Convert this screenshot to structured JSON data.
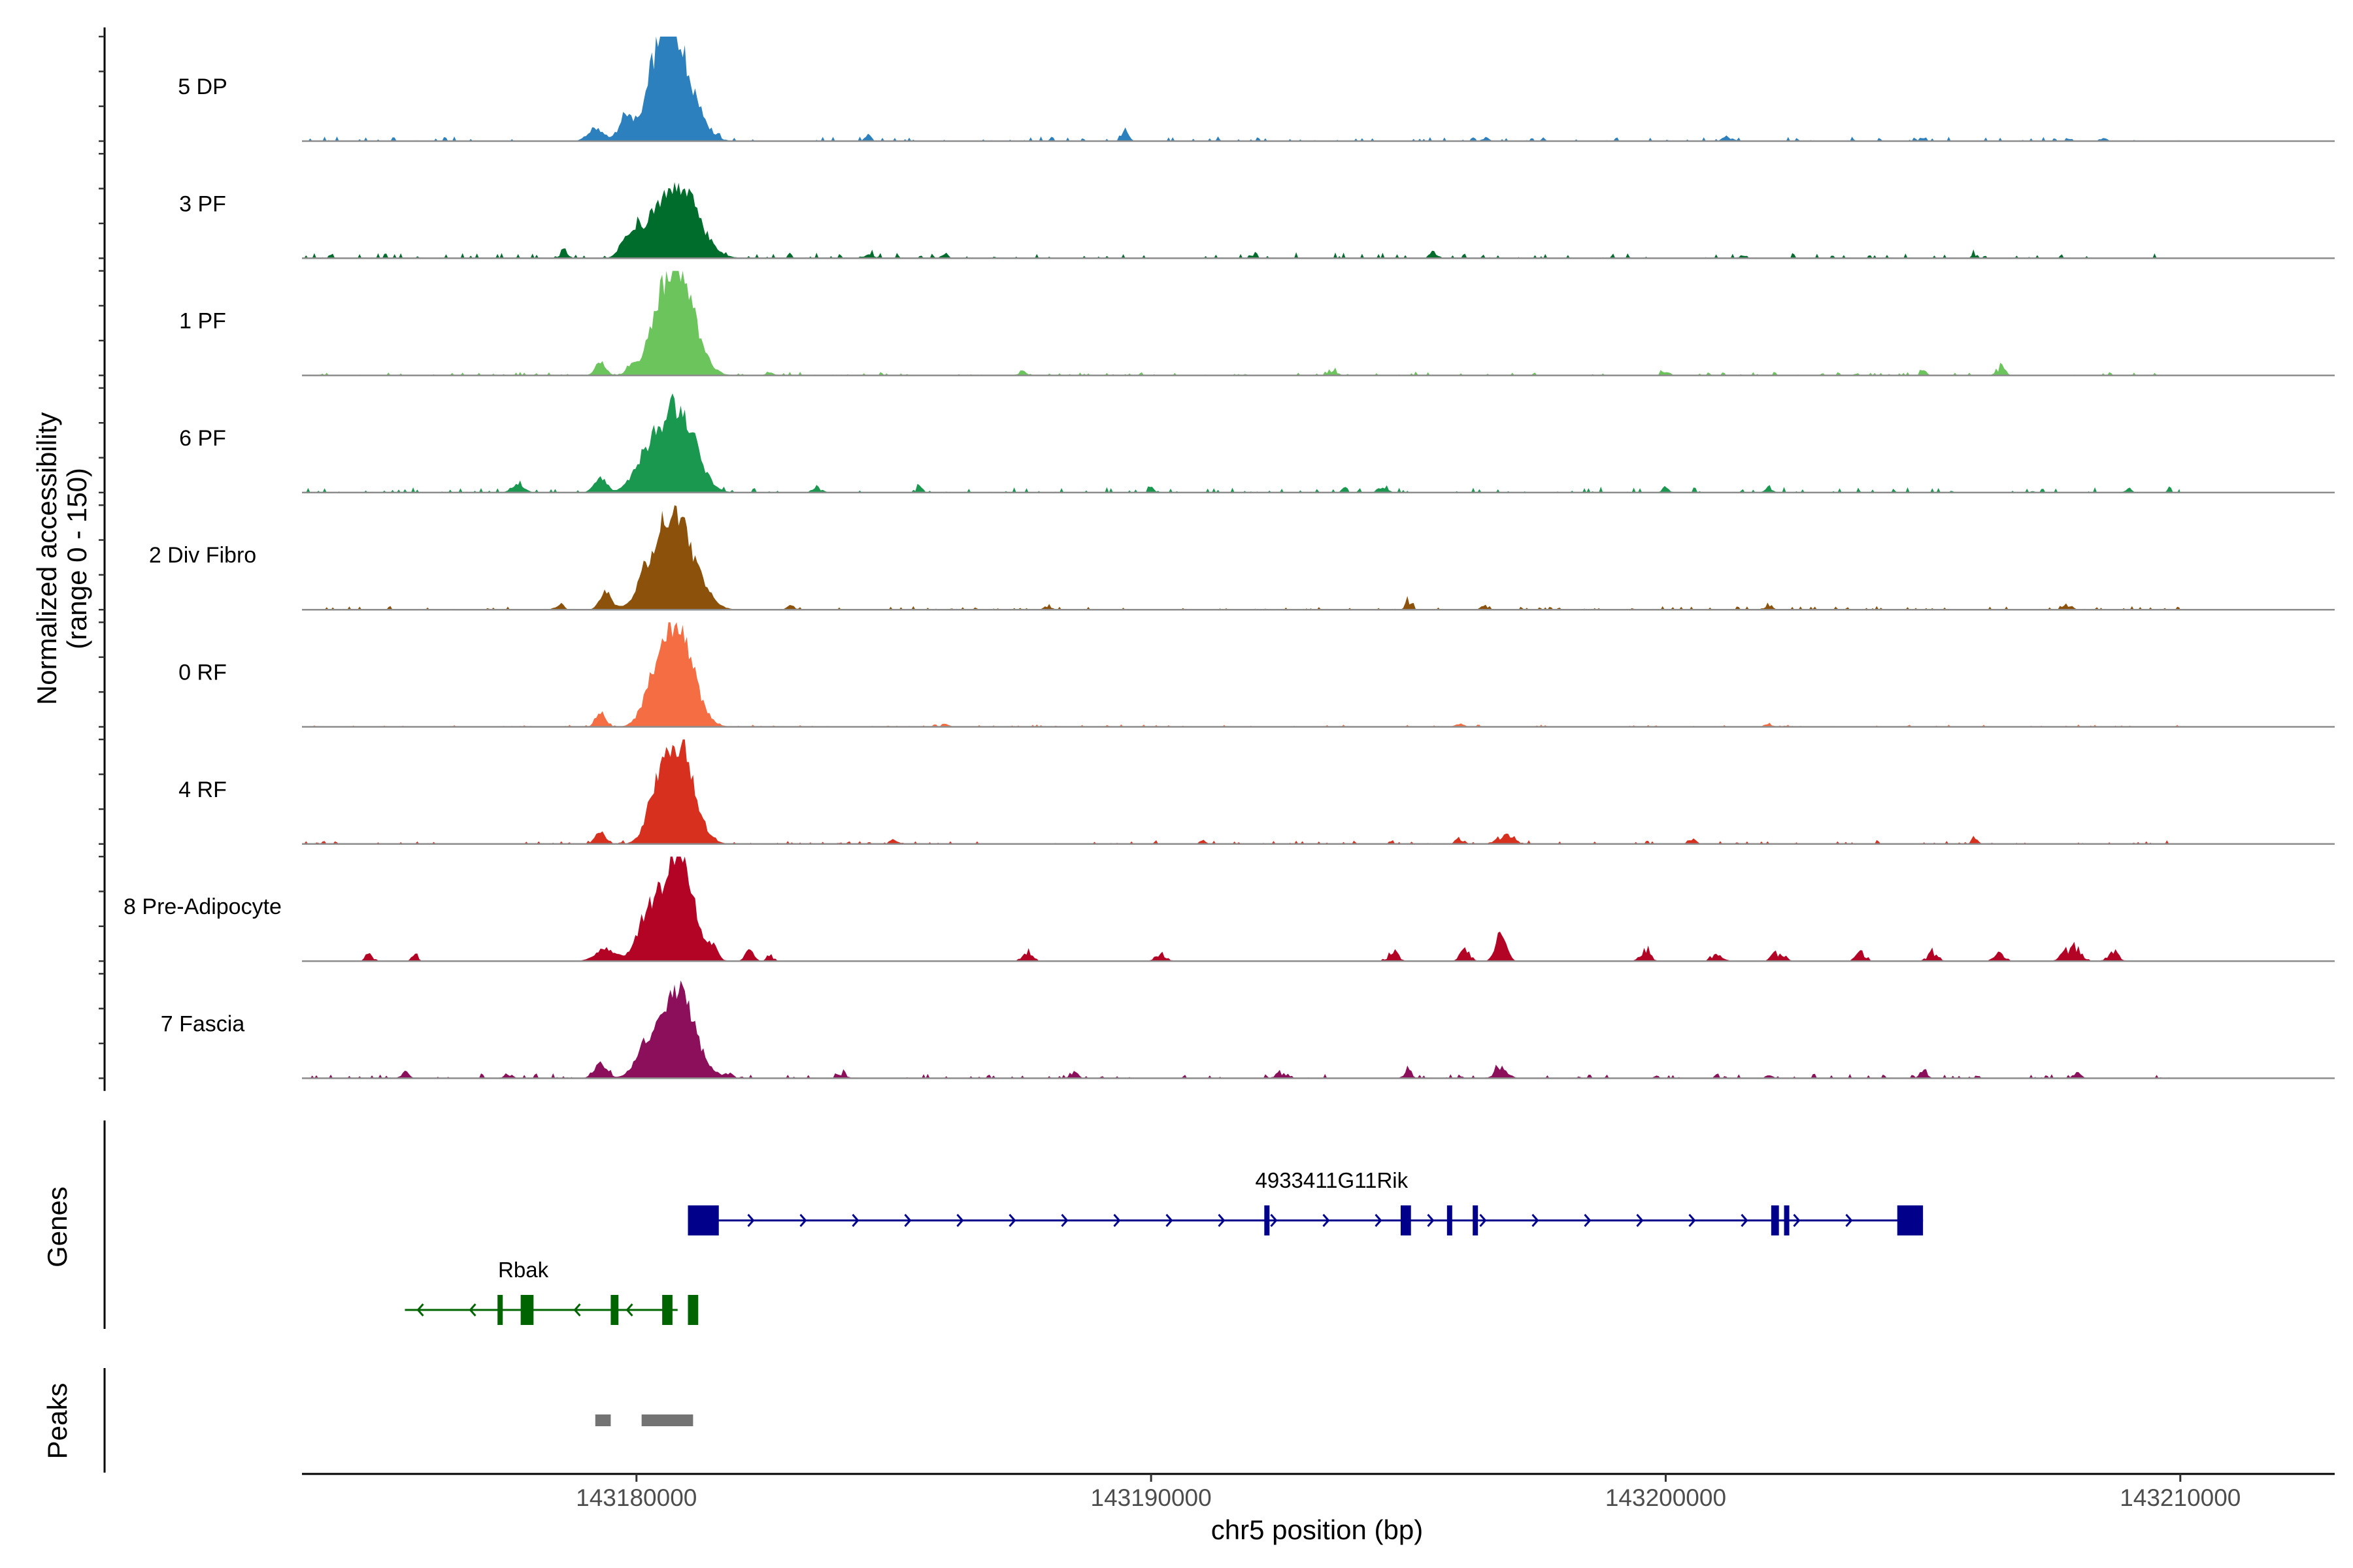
{
  "chart_data": {
    "type": "area",
    "title": "",
    "y_axis_title_line1": "Normalized accessibility",
    "y_axis_title_line2": "(range 0 - 150)",
    "y_range": [
      0,
      150
    ],
    "x_axis_title": "chr5 position (bp)",
    "xlim": [
      143173500,
      143213000
    ],
    "x_ticks": [
      143180000,
      143190000,
      143200000,
      143210000
    ],
    "x_tick_labels": [
      "143180000",
      "143190000",
      "143200000",
      "143210000"
    ],
    "track_data_start": 143173500,
    "track_data_end": 143210000,
    "coverage_tracks": [
      {
        "name": "5 DP",
        "color": "#2c80bd",
        "peaks": [
          [
            143179800,
            30,
            140
          ],
          [
            143180700,
            150,
            350
          ],
          [
            143180450,
            40,
            200
          ],
          [
            143179200,
            18,
            150
          ]
        ],
        "noise": 4,
        "minor": [
          [
            143184500,
            8,
            60
          ],
          [
            143189500,
            10,
            80
          ],
          [
            143196500,
            6,
            60
          ],
          [
            143201200,
            8,
            80
          ],
          [
            143205000,
            6,
            60
          ],
          [
            143208500,
            6,
            60
          ]
        ]
      },
      {
        "name": "3 PF",
        "color": "#006d2c",
        "peaks": [
          [
            143180800,
            110,
            380
          ],
          [
            143180000,
            30,
            220
          ],
          [
            143179800,
            14,
            100
          ],
          [
            143178600,
            8,
            80
          ]
        ],
        "noise": 5,
        "minor": [
          [
            143184500,
            8,
            80
          ],
          [
            143186000,
            6,
            70
          ],
          [
            143192000,
            7,
            60
          ],
          [
            143195500,
            8,
            80
          ],
          [
            143201500,
            7,
            60
          ],
          [
            143206000,
            6,
            60
          ]
        ]
      },
      {
        "name": "1 PF",
        "color": "#6cc45c",
        "peaks": [
          [
            143180800,
            150,
            320
          ],
          [
            143180400,
            40,
            200
          ],
          [
            143179300,
            20,
            100
          ],
          [
            143179900,
            12,
            100
          ]
        ],
        "noise": 3,
        "minor": [
          [
            143182600,
            6,
            80
          ],
          [
            143187500,
            6,
            80
          ],
          [
            143193500,
            7,
            100
          ],
          [
            143200000,
            6,
            80
          ],
          [
            143205000,
            6,
            60
          ],
          [
            143206500,
            12,
            80
          ]
        ]
      },
      {
        "name": "6 PF",
        "color": "#1a9850",
        "peaks": [
          [
            143180800,
            125,
            330
          ],
          [
            143180200,
            45,
            250
          ],
          [
            143179300,
            22,
            120
          ],
          [
            143177700,
            12,
            120
          ]
        ],
        "noise": 5,
        "minor": [
          [
            143183500,
            8,
            90
          ],
          [
            143185500,
            7,
            70
          ],
          [
            143190000,
            6,
            60
          ],
          [
            143194500,
            8,
            90
          ],
          [
            143200000,
            6,
            80
          ],
          [
            143202000,
            7,
            70
          ],
          [
            143209000,
            6,
            60
          ]
        ]
      },
      {
        "name": "2 Div Fibro",
        "color": "#8c510a",
        "peaks": [
          [
            143180700,
            140,
            380
          ],
          [
            143179400,
            25,
            110
          ],
          [
            143180100,
            12,
            100
          ]
        ],
        "noise": 3,
        "minor": [
          [
            143178500,
            8,
            80
          ],
          [
            143183000,
            6,
            70
          ],
          [
            143188000,
            6,
            60
          ],
          [
            143195000,
            14,
            60
          ],
          [
            143196500,
            6,
            80
          ],
          [
            143202000,
            8,
            80
          ],
          [
            143207800,
            7,
            80
          ]
        ]
      },
      {
        "name": "0 RF",
        "color": "#f46d43",
        "peaks": [
          [
            143180800,
            145,
            300
          ],
          [
            143180300,
            40,
            200
          ],
          [
            143179300,
            22,
            90
          ]
        ],
        "noise": 2,
        "minor": [
          [
            143186000,
            4,
            80
          ],
          [
            143196000,
            4,
            80
          ],
          [
            143202000,
            4,
            80
          ]
        ]
      },
      {
        "name": "4 RF",
        "color": "#d7301f",
        "peaks": [
          [
            143180800,
            145,
            300
          ],
          [
            143180400,
            40,
            200
          ],
          [
            143179300,
            18,
            100
          ]
        ],
        "noise": 3,
        "minor": [
          [
            143185000,
            6,
            80
          ],
          [
            143191000,
            5,
            60
          ],
          [
            143196000,
            8,
            80
          ],
          [
            143196900,
            14,
            150
          ],
          [
            143200500,
            6,
            80
          ],
          [
            143206000,
            8,
            60
          ]
        ]
      },
      {
        "name": "8 Pre-Adipocyte",
        "color": "#b40426",
        "peaks": [
          [
            143180800,
            150,
            300
          ],
          [
            143180200,
            55,
            200
          ],
          [
            143179400,
            18,
            200
          ],
          [
            143182200,
            18,
            80
          ],
          [
            143181500,
            14,
            80
          ],
          [
            143196800,
            45,
            100
          ]
        ],
        "noise": 0,
        "minor": [
          [
            143174800,
            10,
            80
          ],
          [
            143175700,
            10,
            60
          ],
          [
            143182600,
            10,
            60
          ],
          [
            143187600,
            12,
            100
          ],
          [
            143190200,
            10,
            100
          ],
          [
            143194700,
            14,
            100
          ],
          [
            143196100,
            14,
            100
          ],
          [
            143199600,
            18,
            100
          ],
          [
            143201000,
            12,
            100
          ],
          [
            143202200,
            14,
            120
          ],
          [
            143203800,
            12,
            100
          ],
          [
            143205200,
            12,
            100
          ],
          [
            143206500,
            12,
            100
          ],
          [
            143207900,
            22,
            150
          ],
          [
            143208700,
            14,
            100
          ]
        ]
      },
      {
        "name": "7 Fascia",
        "color": "#8b0f5a",
        "peaks": [
          [
            143180800,
            120,
            330
          ],
          [
            143180200,
            35,
            220
          ],
          [
            143179300,
            22,
            120
          ]
        ],
        "noise": 4,
        "minor": [
          [
            143175500,
            8,
            80
          ],
          [
            143177500,
            6,
            80
          ],
          [
            143181800,
            6,
            80
          ],
          [
            143184000,
            8,
            80
          ],
          [
            143188500,
            10,
            80
          ],
          [
            143192500,
            8,
            80
          ],
          [
            143195000,
            12,
            80
          ],
          [
            143196800,
            22,
            120
          ],
          [
            143202000,
            6,
            60
          ],
          [
            143205000,
            8,
            80
          ],
          [
            143208000,
            8,
            80
          ]
        ]
      }
    ],
    "genes": [
      {
        "name": "4933411G11Rik",
        "strand": "+",
        "color": "#00008b",
        "start": 143181000,
        "end": 143205000,
        "exons": [
          [
            143181000,
            143181600
          ],
          [
            143192200,
            143192260
          ],
          [
            143194850,
            143195050
          ],
          [
            143195750,
            143195800
          ],
          [
            143196250,
            143196330
          ],
          [
            143202050,
            143202200
          ],
          [
            143202300,
            143202380
          ],
          [
            143204500,
            143205000
          ]
        ]
      },
      {
        "name": "Rbak",
        "strand": "-",
        "color": "#006400",
        "start": 143175500,
        "end": 143180800,
        "exons": [
          [
            143177300,
            143177400
          ],
          [
            143177750,
            143178000
          ],
          [
            143181000,
            143181200
          ],
          [
            143180500,
            143180700
          ],
          [
            143179500,
            143179650
          ]
        ]
      }
    ],
    "peaks_track": {
      "name": "Peaks",
      "color": "#737373",
      "regions": [
        [
          143179200,
          143179500
        ],
        [
          143180100,
          143181100
        ]
      ]
    },
    "panel_labels": {
      "genes": "Genes",
      "peaks": "Peaks"
    }
  }
}
